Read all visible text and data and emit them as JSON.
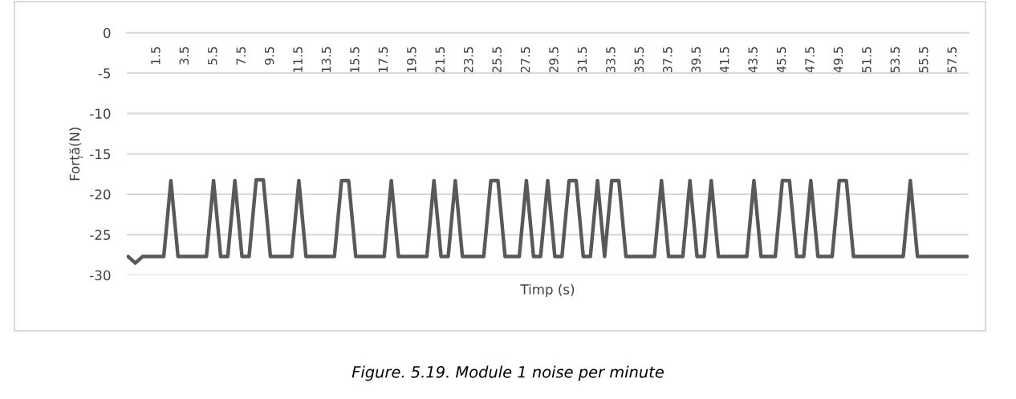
{
  "chart_data": {
    "type": "line",
    "xlabel": "Timp (s)",
    "ylabel": "Forță(N)",
    "annotations": [
      "Figure. 5.19. Module 1 noise per minute"
    ],
    "x": [
      -0.5,
      0,
      0.5,
      1,
      1.5,
      2,
      2.5,
      3,
      3.5,
      4,
      4.5,
      5,
      5.5,
      6,
      6.5,
      7,
      7.5,
      8,
      8.5,
      9,
      9.5,
      10,
      10.5,
      11,
      11.5,
      12,
      12.5,
      13,
      13.5,
      14,
      14.5,
      15,
      15.5,
      16,
      16.5,
      17,
      17.5,
      18,
      18.5,
      19,
      19.5,
      20,
      20.5,
      21,
      21.5,
      22,
      22.5,
      23,
      23.5,
      24,
      24.5,
      25,
      25.5,
      26,
      26.5,
      27,
      27.5,
      28,
      28.5,
      29,
      29.5,
      30,
      30.5,
      31,
      31.5,
      32,
      32.5,
      33,
      33.5,
      34,
      34.5,
      35,
      35.5,
      36,
      36.5,
      37,
      37.5,
      38,
      38.5,
      39,
      39.5,
      40,
      40.5,
      41,
      41.5,
      42,
      42.5,
      43,
      43.5,
      44,
      44.5,
      45,
      45.5,
      46,
      46.5,
      47,
      47.5,
      48,
      48.5,
      49,
      49.5,
      50,
      50.5,
      51,
      51.5,
      52,
      52.5,
      53,
      53.5,
      54,
      54.5,
      55,
      55.5,
      56,
      56.5,
      57,
      57.5,
      58,
      58.5
    ],
    "series": [
      {
        "color": "#595959",
        "values": [
          -27.7,
          -28.5,
          -27.7,
          -27.7,
          -27.7,
          -27.7,
          -18.3,
          -27.7,
          -27.7,
          -27.7,
          -27.7,
          -27.7,
          -18.3,
          -27.7,
          -27.7,
          -18.3,
          -27.7,
          -27.7,
          -18.2,
          -18.2,
          -27.7,
          -27.7,
          -27.7,
          -27.7,
          -18.3,
          -27.7,
          -27.7,
          -27.7,
          -27.7,
          -27.7,
          -18.3,
          -18.3,
          -27.7,
          -27.7,
          -27.7,
          -27.7,
          -27.7,
          -18.3,
          -27.7,
          -27.7,
          -27.7,
          -27.7,
          -27.7,
          -18.3,
          -27.7,
          -27.7,
          -18.3,
          -27.7,
          -27.7,
          -27.7,
          -27.7,
          -18.3,
          -18.3,
          -27.7,
          -27.7,
          -27.7,
          -18.3,
          -27.7,
          -27.7,
          -18.3,
          -27.7,
          -27.7,
          -18.3,
          -18.3,
          -27.7,
          -27.7,
          -18.3,
          -27.7,
          -18.3,
          -18.3,
          -27.7,
          -27.7,
          -27.7,
          -27.7,
          -27.7,
          -18.3,
          -27.7,
          -27.7,
          -27.7,
          -18.3,
          -27.7,
          -27.7,
          -18.3,
          -27.7,
          -27.7,
          -27.7,
          -27.7,
          -27.7,
          -18.3,
          -27.7,
          -27.7,
          -27.7,
          -18.3,
          -18.3,
          -27.7,
          -27.7,
          -18.3,
          -27.7,
          -27.7,
          -27.7,
          -18.3,
          -18.3,
          -27.7,
          -27.7,
          -27.7,
          -27.7,
          -27.7,
          -27.7,
          -27.7,
          -27.7,
          -18.3,
          -27.7,
          -27.7,
          -27.7,
          -27.7,
          -27.7,
          -27.7,
          -27.7,
          -27.7
        ]
      }
    ],
    "xlim": [
      -0.6,
      58.6
    ],
    "xticks": [
      1.5,
      3.5,
      5.5,
      7.5,
      9.5,
      11.5,
      13.5,
      15.5,
      17.5,
      19.5,
      21.5,
      23.5,
      25.5,
      27.5,
      29.5,
      31.5,
      33.5,
      35.5,
      37.5,
      39.5,
      41.5,
      43.5,
      45.5,
      47.5,
      49.5,
      51.5,
      53.5,
      55.5,
      57.5
    ],
    "ylim": [
      -30,
      0
    ],
    "yticks": [
      0,
      -5,
      -10,
      -15,
      -20,
      -25,
      -30
    ],
    "grid": "y",
    "marker": "none",
    "line_style": "solid"
  }
}
